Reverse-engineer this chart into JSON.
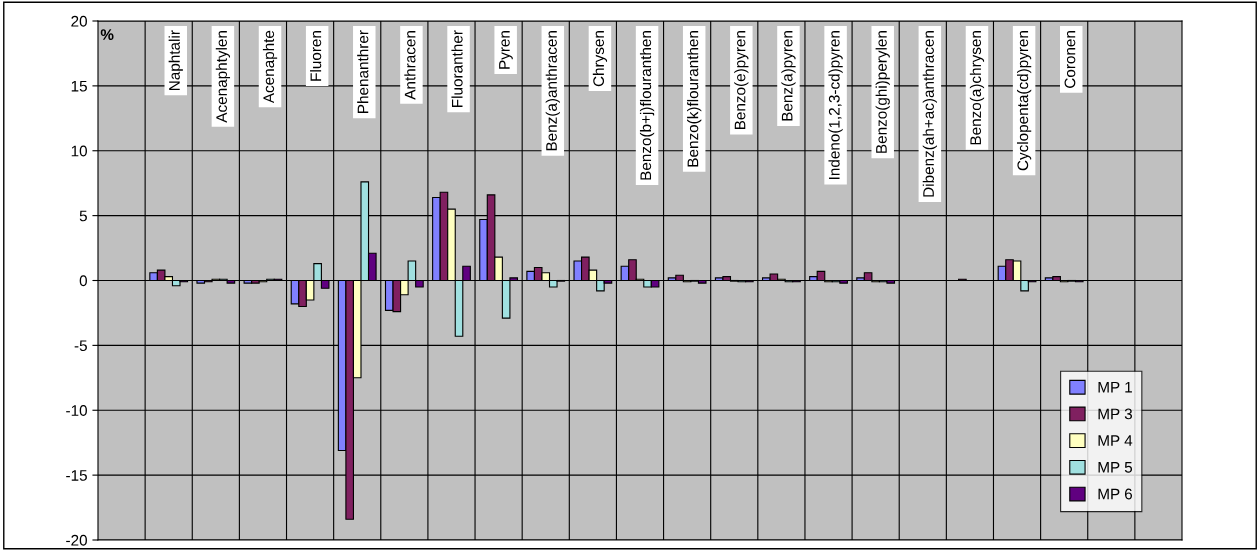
{
  "chart_data": {
    "type": "bar",
    "ylabel": "%",
    "categories": [
      null,
      "Naphtalir",
      "Acenaphtylen",
      "Acenaphte",
      "Fluoren",
      "Phenanthrer",
      "Anthracen",
      "Fluoranther",
      "Pyren",
      "Benz(a)anthracen",
      "Chrysen",
      "Benzo(b+j)flouranthen",
      "Benzo(k)flouranthen",
      "Benzo(e)pyren",
      "Benz(a)pyren",
      "Indeno(1,2,3-cd)pyren",
      "Benzo(ghi)perylen",
      "Dibenz(ah+ac)anthracen",
      "Benzo(a)chrysen",
      "Cyclopenta(cd)pyren",
      "Coronen",
      null,
      null
    ],
    "series": [
      {
        "name": "MP 1",
        "color": "#8080ff",
        "values": [
          null,
          0.6,
          -0.2,
          -0.2,
          -1.8,
          -13.1,
          -2.3,
          6.4,
          4.7,
          0.7,
          1.5,
          1.1,
          0.2,
          0.2,
          0.2,
          0.3,
          0.2,
          null,
          null,
          1.1,
          0.2,
          null,
          null
        ]
      },
      {
        "name": "MP 3",
        "color": "#802060",
        "values": [
          null,
          0.8,
          -0.1,
          -0.2,
          -2.0,
          -18.4,
          -2.4,
          6.8,
          6.6,
          1.0,
          1.8,
          1.6,
          0.4,
          0.3,
          0.5,
          0.7,
          0.6,
          null,
          0.1,
          1.6,
          0.3,
          null,
          null
        ]
      },
      {
        "name": "MP 4",
        "color": "#ffffc0",
        "values": [
          null,
          0.3,
          0.1,
          -0.1,
          -1.5,
          -7.5,
          -1.1,
          5.5,
          1.8,
          0.6,
          0.8,
          0.1,
          -0.1,
          -0.05,
          0.1,
          -0.1,
          -0.1,
          null,
          null,
          1.5,
          -0.1,
          null,
          null
        ]
      },
      {
        "name": "MP 5",
        "color": "#a0e0e0",
        "values": [
          null,
          -0.4,
          0.1,
          0.1,
          1.3,
          7.6,
          1.5,
          -4.3,
          -2.9,
          -0.5,
          -0.8,
          -0.5,
          -0.05,
          -0.1,
          -0.1,
          -0.1,
          -0.1,
          null,
          null,
          -0.8,
          -0.05,
          null,
          null
        ]
      },
      {
        "name": "MP 6",
        "color": "#600080",
        "values": [
          null,
          -0.1,
          -0.2,
          0.1,
          -0.6,
          2.1,
          -0.5,
          1.1,
          0.2,
          -0.05,
          -0.2,
          -0.5,
          -0.2,
          -0.1,
          -0.1,
          -0.2,
          -0.2,
          null,
          null,
          -0.1,
          -0.1,
          null,
          null
        ]
      }
    ],
    "ylim": [
      -20,
      20
    ],
    "yticks": [
      -20,
      -15,
      -10,
      -5,
      0,
      5,
      10,
      15,
      20
    ],
    "grid": true,
    "legend": "bottom right"
  }
}
